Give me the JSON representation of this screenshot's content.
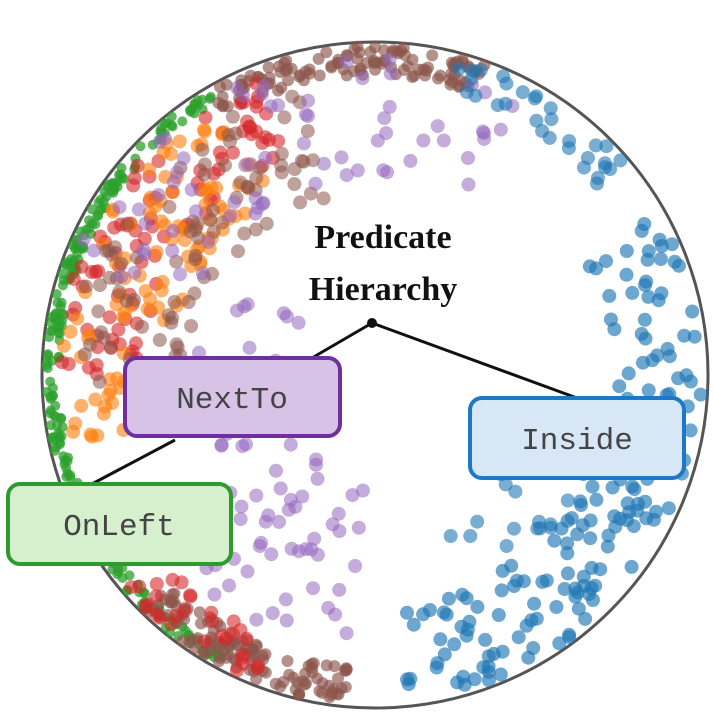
{
  "title": {
    "line1": "Predicate",
    "line2": "Hierarchy"
  },
  "nodes": {
    "next_to": {
      "label": "NextTo",
      "fill": "#d7c3e6",
      "stroke": "#6f2f9e"
    },
    "inside": {
      "label": "Inside",
      "fill": "#d7e7f6",
      "stroke": "#1c78c8"
    },
    "on_left": {
      "label": "OnLeft",
      "fill": "#d6efcd",
      "stroke": "#2e9b2e"
    }
  },
  "colors": {
    "inside_points": "#1f77b4",
    "next_to_points": "#9467bd",
    "on_left_points": "#2ca02c",
    "orange_points": "#ff7f0e",
    "red_points": "#d62728",
    "brown_points": "#8c564b",
    "boundary": "#555555",
    "edges": "#111111"
  }
}
